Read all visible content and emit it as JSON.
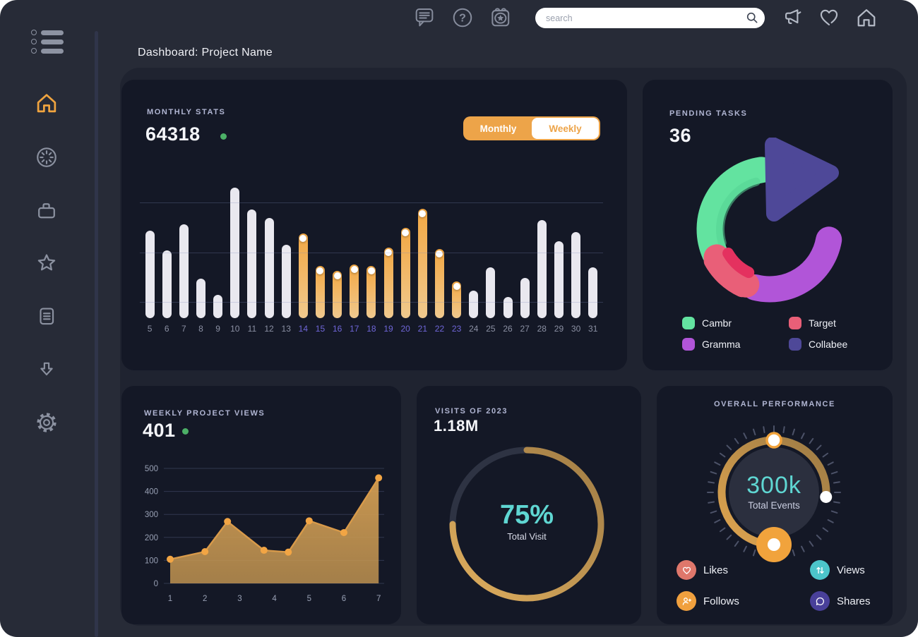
{
  "window": {
    "title": "Dashboard: Project Name",
    "background": "#272b37",
    "canvas": "#ffffff"
  },
  "topbar": {
    "search": {
      "placeholder": "search"
    },
    "icons": [
      {
        "name": "messages"
      },
      {
        "name": "help"
      },
      {
        "name": "calendar"
      },
      {
        "name": "announcements"
      },
      {
        "name": "favorites"
      },
      {
        "name": "home"
      }
    ]
  },
  "sidebar": {
    "active_color": "#f0a43f",
    "icon_color": "#8b91a0",
    "items": [
      {
        "id": "home",
        "active": true
      },
      {
        "id": "dashboard",
        "active": false
      },
      {
        "id": "projects",
        "active": false
      },
      {
        "id": "favorites",
        "active": false
      },
      {
        "id": "documents",
        "active": false
      },
      {
        "id": "downloads",
        "active": false
      },
      {
        "id": "settings",
        "active": false
      }
    ]
  },
  "cards": {
    "monthly_stats": {
      "label": "MONTHLY STATS",
      "value": "64318",
      "trend_dot_color": "#4cb067",
      "toggle": {
        "options": [
          "Monthly",
          "Weekly"
        ],
        "selected": "Monthly",
        "color": "#eda449"
      }
    },
    "pending_tasks": {
      "label": "PENDING TASKS",
      "value": "36",
      "legend": [
        {
          "label": "Cambr",
          "color": "#63e3a0"
        },
        {
          "label": "Target",
          "color": "#e95f78"
        },
        {
          "label": "Gramma",
          "color": "#b155d8"
        },
        {
          "label": "Collabee",
          "color": "#4e4898"
        }
      ]
    },
    "weekly_views": {
      "label": "WEEKLY PROJECT VIEWS",
      "value": "401",
      "trend_dot_color": "#4cb067"
    },
    "visits": {
      "label": "VISITS OF 2023",
      "value": "1.18M",
      "center_value": "75%",
      "center_label": "Total Visit",
      "accent": "#5fd6d2"
    },
    "performance": {
      "label": "OVERALL PERFORMANCE",
      "center_value": "300k",
      "center_label": "Total Events",
      "accent": "#5fd6d2",
      "legend": [
        {
          "label": "Likes",
          "color": "#df776b"
        },
        {
          "label": "Views",
          "color": "#4cc5ca"
        },
        {
          "label": "Follows",
          "color": "#f0a03e"
        },
        {
          "label": "Shares",
          "color": "#49409a"
        }
      ]
    }
  },
  "chart_data": [
    {
      "id": "monthly-stats",
      "type": "bar",
      "title": "Monthly Stats",
      "categories": [
        5,
        6,
        7,
        8,
        9,
        10,
        11,
        12,
        13,
        14,
        15,
        16,
        17,
        18,
        19,
        20,
        21,
        22,
        23,
        24,
        25,
        26,
        27,
        28,
        29,
        30,
        31
      ],
      "values": [
        67,
        52,
        72,
        30,
        18,
        100,
        83,
        77,
        56,
        65,
        40,
        36,
        41,
        40,
        54,
        69,
        84,
        53,
        28,
        21,
        39,
        16,
        31,
        75,
        59,
        66,
        39
      ],
      "highlight_categories": [
        14,
        23
      ],
      "ylim": [
        0,
        100
      ],
      "gridlines": [
        12,
        50,
        88
      ],
      "bar_color": "#e9e8ef",
      "highlight_color_top": "#f3a844",
      "highlight_color_bottom": "#f0c98e",
      "label_color": "#8b90a3",
      "highlight_label_color": "#6f66d8"
    },
    {
      "id": "pending-tasks",
      "type": "pie",
      "title": "Pending Tasks",
      "segments": [
        {
          "label": "Cambr",
          "pct": 30,
          "color": "#63e3a0",
          "a1": 246,
          "a2": 352
        },
        {
          "label": "Gramma",
          "pct": 26,
          "color": "#b155d8",
          "a1": 100,
          "a2": 194
        },
        {
          "label": "Target",
          "pct": 11,
          "color": "#e95f78",
          "a1": 203,
          "a2": 242
        },
        {
          "label": "Collabee",
          "pct": 24,
          "color": "#4e4898",
          "wedge": [
            [
              134,
              10
            ],
            [
              136,
              108
            ],
            [
              217,
              50
            ]
          ]
        }
      ],
      "accent": {
        "color": "#e4315f",
        "a1": 206,
        "a2": 240
      },
      "inner_shade": {
        "color": "#55d494",
        "a1": 254,
        "a2": 344
      }
    },
    {
      "id": "weekly-views",
      "type": "area",
      "title": "Weekly Project Views",
      "x": [
        1,
        2,
        2.65,
        3.7,
        4.4,
        5,
        6,
        7
      ],
      "y": [
        105,
        138,
        269,
        144,
        136,
        272,
        221,
        459
      ],
      "xticks": [
        1,
        2,
        3,
        4,
        5,
        6,
        7
      ],
      "yticks": [
        0,
        100,
        200,
        300,
        400,
        500
      ],
      "ylim": [
        0,
        500
      ],
      "line_color": "#d89a4a",
      "point_color": "#f2a544",
      "fill_top": "#d9a254",
      "fill_bottom": "#bd9150"
    },
    {
      "id": "visits-ring",
      "type": "pie",
      "title": "Visits of 2023",
      "value_pct": 75,
      "center_value": "75%",
      "center_label": "Total Visit",
      "track_color": "#2e3343",
      "arc_color_light": "#dfae5e",
      "arc_color_dark": "#a07c45"
    },
    {
      "id": "performance-gauge",
      "type": "pie",
      "title": "Overall Performance",
      "center_value": "300k",
      "center_label": "Total Events",
      "arc_start_deg": 180,
      "arc_sweep_deg": 275,
      "handle_angles": [
        0,
        95,
        180
      ],
      "knob_color": "#f1a33c",
      "tick_count": 40,
      "tick_color": "#4c5268",
      "inner_circle_color": "#2b2f3e",
      "arc_color_light": "#e0a54f",
      "arc_color_dark": "#9b7a45"
    }
  ]
}
